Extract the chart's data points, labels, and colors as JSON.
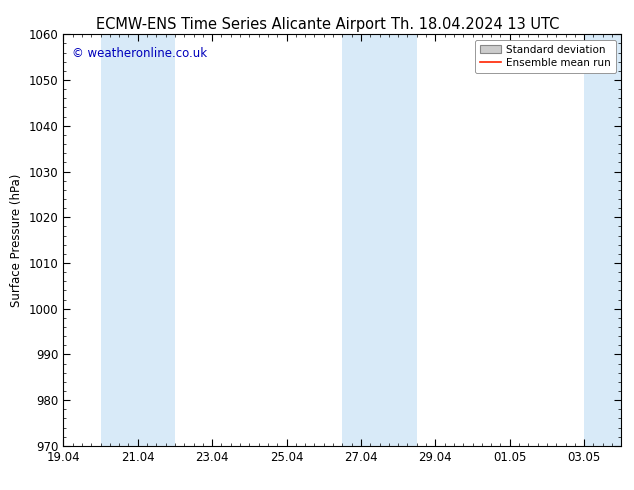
{
  "title_left": "ECMW-ENS Time Series Alicante Airport",
  "title_right": "Th. 18.04.2024 13 UTC",
  "ylabel": "Surface Pressure (hPa)",
  "watermark": "© weatheronline.co.uk",
  "watermark_color": "#0000bb",
  "ylim": [
    970,
    1060
  ],
  "yticks": [
    970,
    980,
    990,
    1000,
    1010,
    1020,
    1030,
    1040,
    1050,
    1060
  ],
  "x_tick_labels": [
    "19.04",
    "21.04",
    "23.04",
    "25.04",
    "27.04",
    "29.04",
    "01.05",
    "03.05"
  ],
  "x_tick_positions": [
    0,
    2,
    4,
    6,
    8,
    10,
    12,
    14
  ],
  "x_min": 0,
  "x_max": 15,
  "shade_bands": [
    {
      "x_start": 1.0,
      "x_end": 3.0,
      "color": "#d8eaf8"
    },
    {
      "x_start": 7.5,
      "x_end": 9.5,
      "color": "#d8eaf8"
    },
    {
      "x_start": 14.0,
      "x_end": 15.0,
      "color": "#d8eaf8"
    }
  ],
  "legend_std_dev_label": "Standard deviation",
  "legend_mean_label": "Ensemble mean run",
  "legend_std_color": "#cccccc",
  "legend_mean_color": "#ff2200",
  "background_color": "#ffffff",
  "title_fontsize": 10.5,
  "ylabel_fontsize": 8.5,
  "tick_fontsize": 8.5,
  "watermark_fontsize": 8.5,
  "legend_fontsize": 7.5
}
